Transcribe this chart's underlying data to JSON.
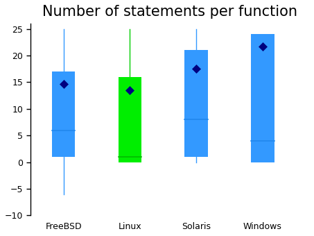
{
  "title": "Number of statements per function",
  "categories": [
    "FreeBSD",
    "Linux",
    "Solaris",
    "Windows"
  ],
  "box_colors": [
    "#3399FF",
    "#00EE00",
    "#3399FF",
    "#3399FF"
  ],
  "whisker_colors": [
    "#3399FF",
    "#00CC00",
    "#3399FF",
    "#3399FF"
  ],
  "median_color": "#3399FF",
  "median_color_green": "#00BB00",
  "mean_color": "#000080",
  "ylim": [
    -10,
    26
  ],
  "yticks": [
    -10,
    -5,
    0,
    5,
    10,
    15,
    20,
    25
  ],
  "box_data": {
    "FreeBSD": {
      "q1": 1,
      "q3": 17,
      "median": 6,
      "whislo": -6,
      "whishi": 25,
      "mean": 14.7
    },
    "Linux": {
      "q1": 0,
      "q3": 16,
      "median": 1,
      "whislo": 0,
      "whishi": 25,
      "mean": 13.5
    },
    "Solaris": {
      "q1": 1,
      "q3": 21,
      "median": 8,
      "whislo": 0,
      "whishi": 25,
      "mean": 17.5
    },
    "Windows": {
      "q1": 0,
      "q3": 24,
      "median": 4,
      "whislo": 0,
      "whishi": 24,
      "mean": 21.7
    }
  },
  "background_color": "#ffffff",
  "title_fontsize": 15,
  "tick_fontsize": 9,
  "xlabel_fontsize": 9
}
